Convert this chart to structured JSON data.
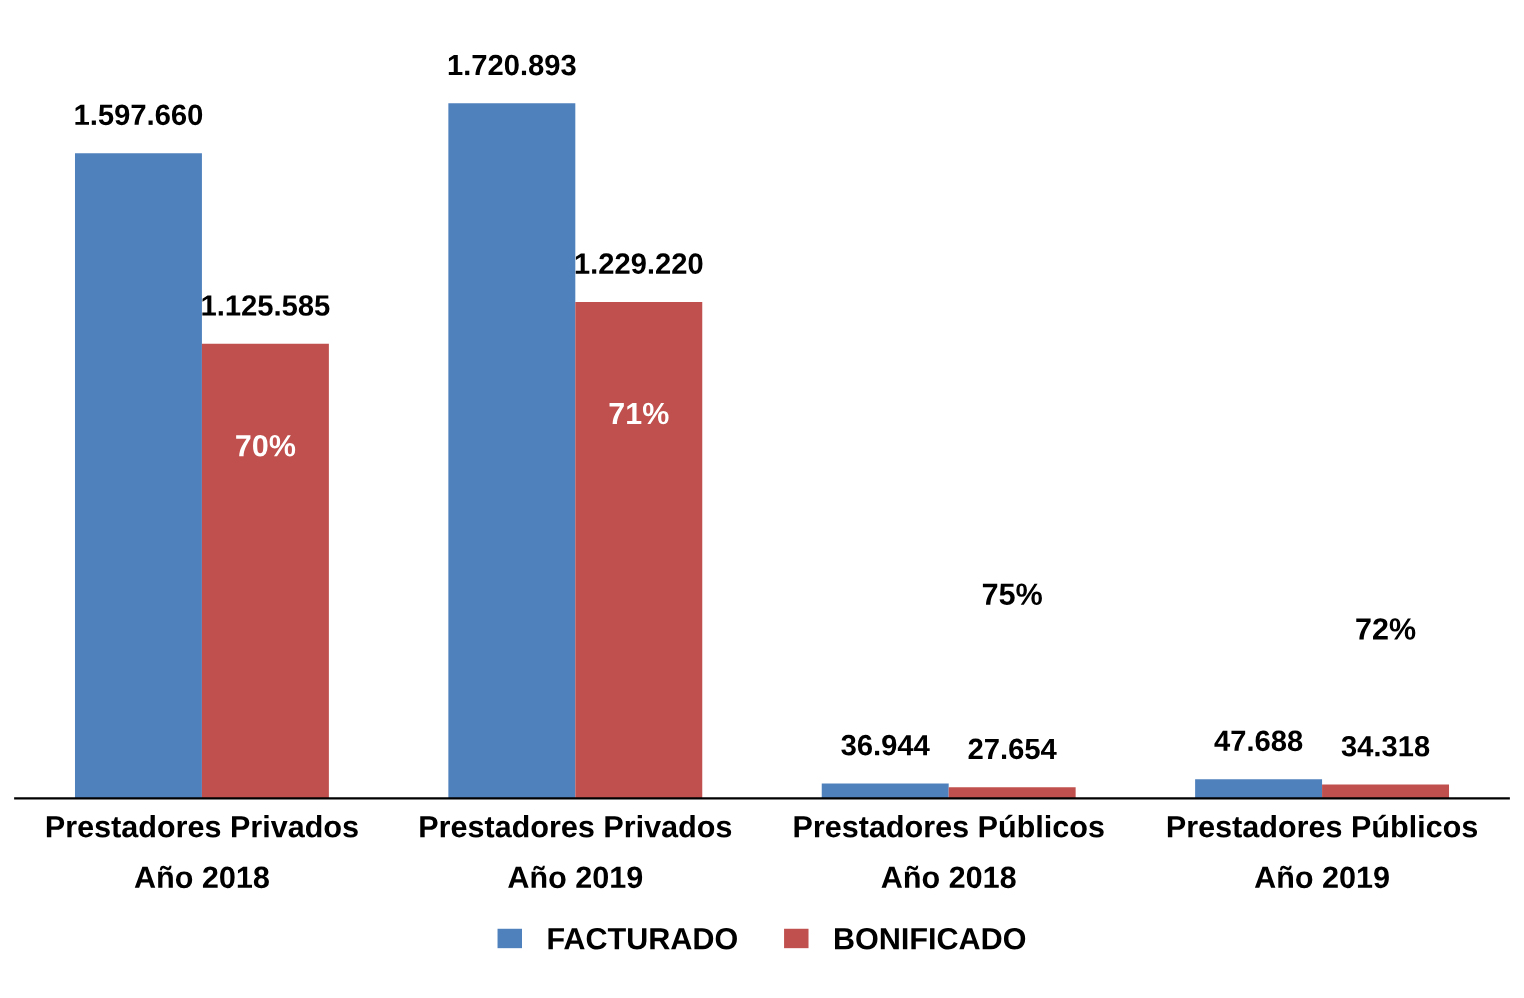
{
  "chart_data": {
    "type": "bar",
    "categories": [
      "Prestadores Privados\nAño 2018",
      "Prestadores Privados\nAño 2019",
      "Prestadores Públicos\nAño 2018",
      "Prestadores Públicos\nAño 2019"
    ],
    "series": [
      {
        "name": "FACTURADO",
        "color": "#4f81bd",
        "values": [
          1597660,
          1720893,
          36944,
          47688
        ],
        "value_labels": [
          "1.597.660",
          "1.720.893",
          "36.944",
          "47.688"
        ]
      },
      {
        "name": "BONIFICADO",
        "color": "#c0504d",
        "values": [
          1125585,
          1229220,
          27654,
          34318
        ],
        "value_labels": [
          "1.125.585",
          "1.229.220",
          "27.654",
          "34.318"
        ]
      }
    ],
    "annotations": [
      "70%",
      "71%",
      "75%",
      "72%"
    ],
    "legend": "bottom",
    "grid": false
  }
}
